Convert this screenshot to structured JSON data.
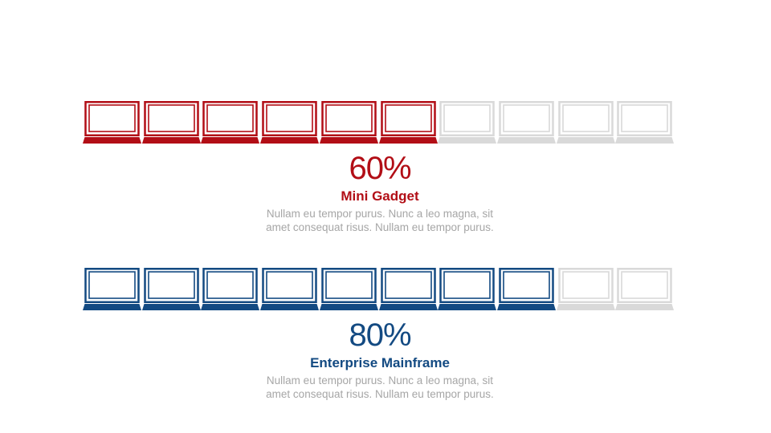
{
  "colors": {
    "red_accent": "#b20e16",
    "blue_accent": "#134a82",
    "inactive": "#d9d9d9",
    "description_text": "#a6a6a6"
  },
  "icon": "laptop-icon",
  "stats": [
    {
      "percent_label": "60%",
      "value_fraction": 0.6,
      "active_count": 6,
      "total_count": 10,
      "name": "Mini Gadget",
      "description_lines": [
        "Nullam eu tempor purus. Nunc a leo magna, sit",
        "amet consequat risus. Nullam eu tempor purus."
      ],
      "color": "#b20e16"
    },
    {
      "percent_label": "80%",
      "value_fraction": 0.8,
      "active_count": 8,
      "total_count": 10,
      "name": "Enterprise Mainframe",
      "description_lines": [
        "Nullam eu tempor purus. Nunc a leo magna, sit",
        "amet consequat risus. Nullam eu tempor purus."
      ],
      "color": "#134a82"
    }
  ]
}
